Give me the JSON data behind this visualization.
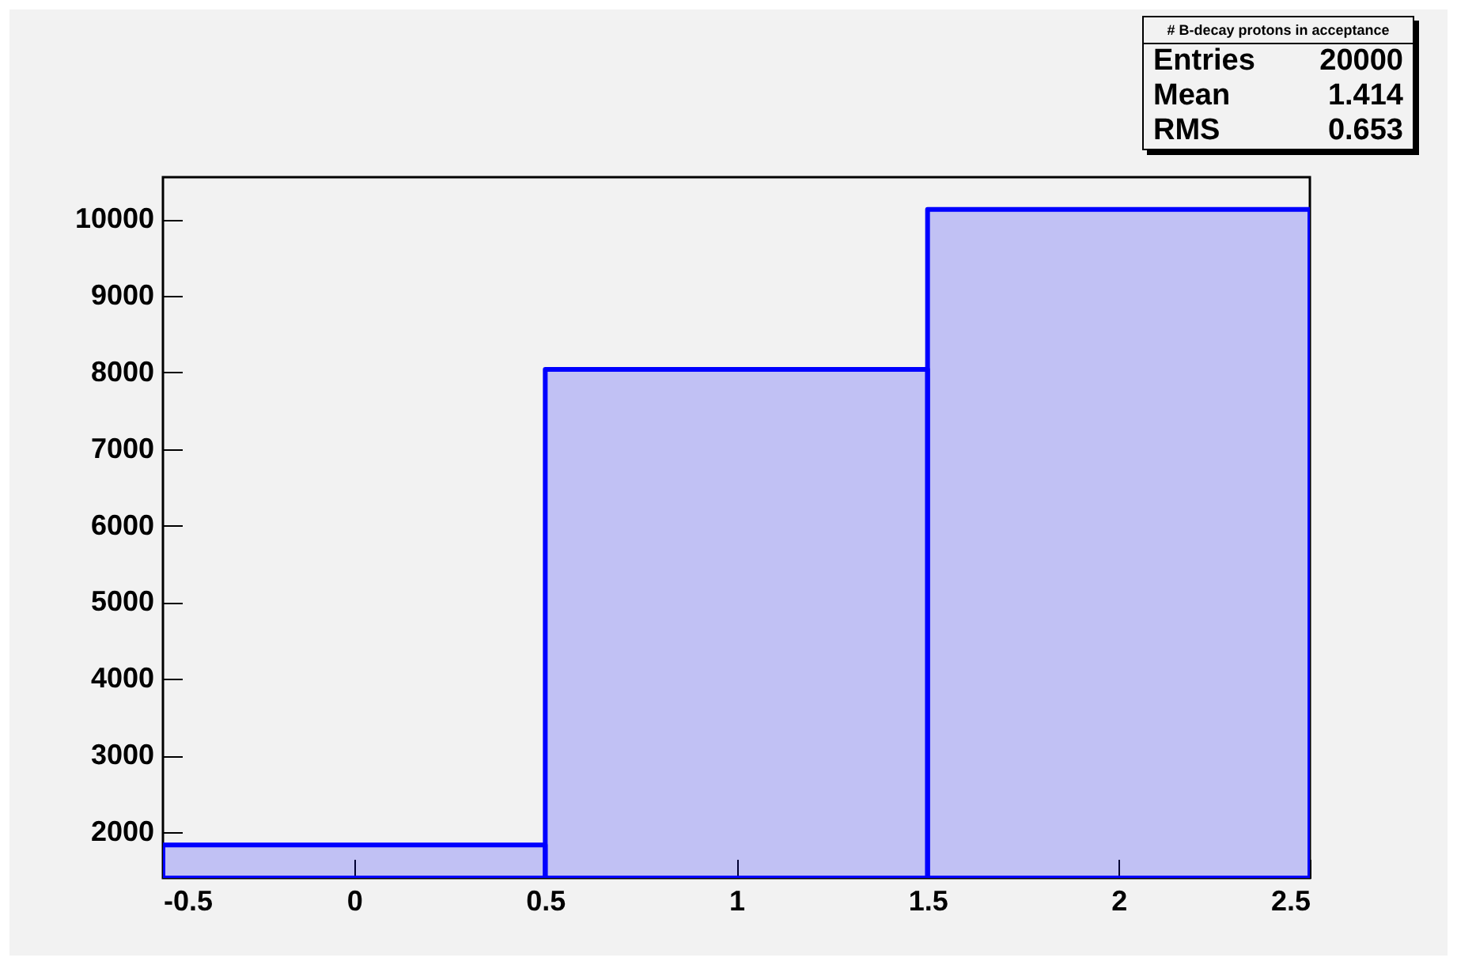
{
  "chart_data": {
    "type": "histogram",
    "title": "# B-decay protons in acceptance",
    "bins": [
      -0.5,
      0.5,
      1.5,
      2.5
    ],
    "values": [
      1830,
      8040,
      10130
    ],
    "color": "#0000ff",
    "xlim": [
      -0.5,
      2.5
    ],
    "xticks": [
      -0.5,
      0,
      0.5,
      1,
      1.5,
      2,
      2.5
    ],
    "ylim": [
      1400,
      10550
    ],
    "yticks": [
      2000,
      3000,
      4000,
      5000,
      6000,
      7000,
      8000,
      9000,
      10000
    ],
    "grid": false,
    "annotations": [
      "Entries 20000",
      "Mean 1.414",
      "RMS 0.653"
    ]
  }
}
